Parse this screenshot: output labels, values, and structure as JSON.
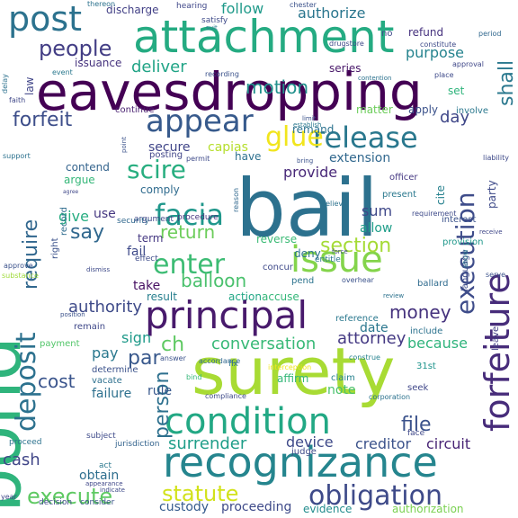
{
  "words": [
    {
      "text": "bond",
      "color": "#2fb47c"
    },
    {
      "text": "bail",
      "color": "#2c718e"
    },
    {
      "text": "surety",
      "color": "#a8db34"
    },
    {
      "text": "eavesdropping",
      "color": "#440154"
    },
    {
      "text": "attachment",
      "color": "#25ab82"
    },
    {
      "text": "recognizance",
      "color": "#25858e"
    },
    {
      "text": "principal",
      "color": "#481a6c"
    },
    {
      "text": "issue",
      "color": "#84d44b"
    },
    {
      "text": "forfeiture",
      "color": "#472c7a"
    },
    {
      "text": "condition",
      "color": "#22a884"
    },
    {
      "text": "post",
      "color": "#2c728e"
    },
    {
      "text": "appear",
      "color": "#375a8c"
    },
    {
      "text": "deposit",
      "color": "#2c718e"
    },
    {
      "text": "facia",
      "color": "#1f978b"
    },
    {
      "text": "release",
      "color": "#2a788e"
    },
    {
      "text": "obligation",
      "color": "#3e4a89"
    },
    {
      "text": "execution",
      "color": "#3e4c8a"
    },
    {
      "text": "enter",
      "color": "#3dbc74"
    },
    {
      "text": "scire",
      "color": "#28ae80"
    },
    {
      "text": "glue",
      "color": "#f1e51d"
    },
    {
      "text": "people",
      "color": "#433e85"
    },
    {
      "text": "forfeit",
      "color": "#3d4e8a"
    },
    {
      "text": "require",
      "color": "#31678e"
    },
    {
      "text": "person",
      "color": "#2d708e"
    },
    {
      "text": "statute",
      "color": "#d2e21b"
    },
    {
      "text": "execute",
      "color": "#5ec962"
    },
    {
      "text": "surrender",
      "color": "#1f9e89"
    },
    {
      "text": "section",
      "color": "#a5db36"
    },
    {
      "text": "conversation",
      "color": "#38b977"
    },
    {
      "text": "money",
      "color": "#46337e"
    },
    {
      "text": "balloon",
      "color": "#4ac16d"
    },
    {
      "text": "motion",
      "color": "#21918c"
    },
    {
      "text": "deliver",
      "color": "#20a486"
    },
    {
      "text": "return",
      "color": "#6ccd5a"
    },
    {
      "text": "file",
      "color": "#3b528b"
    },
    {
      "text": "say",
      "color": "#31688e"
    },
    {
      "text": "shall",
      "color": "#2a788e"
    },
    {
      "text": "cost",
      "color": "#3a548c"
    },
    {
      "text": "authority",
      "color": "#3e4a89"
    },
    {
      "text": "attorney",
      "color": "#443983"
    },
    {
      "text": "day",
      "color": "#3f4788"
    },
    {
      "text": "purpose",
      "color": "#25838e"
    },
    {
      "text": "authorize",
      "color": "#2a768e"
    },
    {
      "text": "follow",
      "color": "#1f9a8a"
    },
    {
      "text": "cash",
      "color": "#404688"
    },
    {
      "text": "device",
      "color": "#3e4989"
    },
    {
      "text": "creditor",
      "color": "#3b528b"
    },
    {
      "text": "circuit",
      "color": "#482475"
    },
    {
      "text": "because",
      "color": "#2fb47c"
    },
    {
      "text": "par",
      "color": "#38588c"
    },
    {
      "text": "ch",
      "color": "#5ec962"
    },
    {
      "text": "sign",
      "color": "#1f9a8a"
    },
    {
      "text": "pay",
      "color": "#2a788e"
    },
    {
      "text": "provide",
      "color": "#482878"
    },
    {
      "text": "extension",
      "color": "#31688e"
    },
    {
      "text": "secure",
      "color": "#404588"
    },
    {
      "text": "capias",
      "color": "#b5de2b"
    },
    {
      "text": "sum",
      "color": "#3f4889"
    },
    {
      "text": "allow",
      "color": "#1f9e89"
    },
    {
      "text": "give",
      "color": "#27ad81"
    },
    {
      "text": "use",
      "color": "#453781"
    },
    {
      "text": "proceeding",
      "color": "#3e4a89"
    },
    {
      "text": "custody",
      "color": "#365c8d"
    },
    {
      "text": "evidence",
      "color": "#228c8d"
    },
    {
      "text": "authorization",
      "color": "#7ad151"
    },
    {
      "text": "obtain",
      "color": "#2e6e8e"
    },
    {
      "text": "failure",
      "color": "#2d708e"
    },
    {
      "text": "rule",
      "color": "#38588c"
    },
    {
      "text": "note",
      "color": "#4ac16d"
    },
    {
      "text": "date",
      "color": "#2a768e"
    },
    {
      "text": "result",
      "color": "#277f8e"
    },
    {
      "text": "action",
      "color": "#22a785"
    },
    {
      "text": "accuse",
      "color": "#35b779"
    },
    {
      "text": "fail",
      "color": "#3e4a89"
    },
    {
      "text": "take",
      "color": "#471063"
    },
    {
      "text": "term",
      "color": "#453882"
    },
    {
      "text": "reverse",
      "color": "#3bbb75"
    },
    {
      "text": "deny",
      "color": "#2c728e"
    },
    {
      "text": "refund",
      "color": "#46327e"
    },
    {
      "text": "discharge",
      "color": "#424086"
    },
    {
      "text": "law",
      "color": "#404588"
    },
    {
      "text": "issuance",
      "color": "#46337e"
    },
    {
      "text": "series",
      "color": "#481769"
    },
    {
      "text": "matter",
      "color": "#6ccd5a"
    },
    {
      "text": "apply",
      "color": "#3b528b"
    },
    {
      "text": "remand",
      "color": "#2c728e"
    },
    {
      "text": "contend",
      "color": "#33638d"
    },
    {
      "text": "argue",
      "color": "#35b779"
    },
    {
      "text": "comply",
      "color": "#2f6b8e"
    },
    {
      "text": "have",
      "color": "#2d708e"
    },
    {
      "text": "posting",
      "color": "#404588"
    },
    {
      "text": "continue",
      "color": "#481f70"
    },
    {
      "text": "party",
      "color": "#3e4a89"
    },
    {
      "text": "involve",
      "color": "#2a788e"
    },
    {
      "text": "set",
      "color": "#2fb47c"
    },
    {
      "text": "officer",
      "color": "#453882"
    },
    {
      "text": "interest",
      "color": "#3b528b"
    },
    {
      "text": "present",
      "color": "#2a788e"
    },
    {
      "text": "provision",
      "color": "#1f988b"
    },
    {
      "text": "cite",
      "color": "#26818e"
    },
    {
      "text": "concur",
      "color": "#3e4989"
    },
    {
      "text": "pend",
      "color": "#2c738e"
    },
    {
      "text": "remain",
      "color": "#3f4889"
    },
    {
      "text": "payment",
      "color": "#52c569"
    },
    {
      "text": "determine",
      "color": "#3b528b"
    },
    {
      "text": "vacate",
      "color": "#2d708e"
    },
    {
      "text": "claim",
      "color": "#26828e"
    },
    {
      "text": "affirm",
      "color": "#35b779"
    },
    {
      "text": "judge",
      "color": "#3e4a89"
    },
    {
      "text": "seek",
      "color": "#3f4788"
    },
    {
      "text": "include",
      "color": "#2c728e"
    },
    {
      "text": "leave",
      "color": "#433e85"
    },
    {
      "text": "31st",
      "color": "#1f948c"
    },
    {
      "text": "ballard",
      "color": "#2f6b8e"
    },
    {
      "text": "language",
      "color": "#3e4c8a"
    },
    {
      "text": "reference",
      "color": "#2a788e"
    },
    {
      "text": "record",
      "color": "#2f6c8e"
    },
    {
      "text": "right",
      "color": "#3b528b"
    },
    {
      "text": "argument",
      "color": "#3f4788"
    },
    {
      "text": "procedure",
      "color": "#46337e"
    },
    {
      "text": "effect",
      "color": "#3e4c8a"
    },
    {
      "text": "security",
      "color": "#31688e"
    },
    {
      "text": "entitle",
      "color": "#2a788e"
    },
    {
      "text": "overhear",
      "color": "#3b528b"
    },
    {
      "text": "face",
      "color": "#3f4889"
    },
    {
      "text": "fix",
      "color": "#2d708e"
    },
    {
      "text": "construe",
      "color": "#26828e"
    },
    {
      "text": "subject",
      "color": "#3e4a89"
    },
    {
      "text": "jurisdiction",
      "color": "#33638d"
    },
    {
      "text": "proceed",
      "color": "#2c728e"
    },
    {
      "text": "consider",
      "color": "#3b528b"
    },
    {
      "text": "decision",
      "color": "#3e4a89"
    },
    {
      "text": "year",
      "color": "#3f4788"
    },
    {
      "text": "act",
      "color": "#2a788e"
    },
    {
      "text": "bind",
      "color": "#35b779"
    },
    {
      "text": "compliance",
      "color": "#3e4a89"
    },
    {
      "text": "corporation",
      "color": "#2c728e"
    },
    {
      "text": "answer",
      "color": "#3b528b"
    },
    {
      "text": "accordance",
      "color": "#31688e"
    },
    {
      "text": "interception",
      "color": "#f1e51d"
    },
    {
      "text": "hearing",
      "color": "#3f4788"
    },
    {
      "text": "satisfy",
      "color": "#3e4a89"
    },
    {
      "text": "thereon",
      "color": "#2c728e"
    },
    {
      "text": "chester",
      "color": "#3b528b"
    },
    {
      "text": "period",
      "color": "#31688e"
    },
    {
      "text": "constitute",
      "color": "#3e4a89"
    },
    {
      "text": "event",
      "color": "#2a788e"
    },
    {
      "text": "approval",
      "color": "#3f4788"
    },
    {
      "text": "recording",
      "color": "#3b528b"
    },
    {
      "text": "contention",
      "color": "#2c728e"
    },
    {
      "text": "place",
      "color": "#3e4a89"
    },
    {
      "text": "delay",
      "color": "#2c718e"
    },
    {
      "text": "faith",
      "color": "#3f4788"
    },
    {
      "text": "point",
      "color": "#3b528b"
    },
    {
      "text": "establish",
      "color": "#2a788e"
    },
    {
      "text": "permit",
      "color": "#3e4a89"
    },
    {
      "text": "reason",
      "color": "#31688e"
    },
    {
      "text": "limit",
      "color": "#3b528b"
    },
    {
      "text": "believe",
      "color": "#2c728e"
    },
    {
      "text": "requirement",
      "color": "#3e4a89"
    },
    {
      "text": "receive",
      "color": "#3f4788"
    },
    {
      "text": "show",
      "color": "#2a788e"
    },
    {
      "text": "serve",
      "color": "#3b528b"
    },
    {
      "text": "liability",
      "color": "#3e4a89"
    },
    {
      "text": "support",
      "color": "#2c718e"
    },
    {
      "text": "agree",
      "color": "#3f4788"
    },
    {
      "text": "approve",
      "color": "#3b528b"
    },
    {
      "text": "substance",
      "color": "#9fda3a"
    },
    {
      "text": "dismiss",
      "color": "#3e4a89"
    },
    {
      "text": "position",
      "color": "#3b528b"
    },
    {
      "text": "indicate",
      "color": "#3e4a89"
    },
    {
      "text": "appearance",
      "color": "#3f4788"
    },
    {
      "text": "review",
      "color": "#2c728e"
    },
    {
      "text": "force",
      "color": "#3e4a89"
    },
    {
      "text": "bring",
      "color": "#3b528b"
    },
    {
      "text": "drugstore",
      "color": "#3e4a89"
    },
    {
      "text": "suit",
      "color": "#2a788e"
    },
    {
      "text": "no",
      "color": "#3e4a89"
    }
  ]
}
